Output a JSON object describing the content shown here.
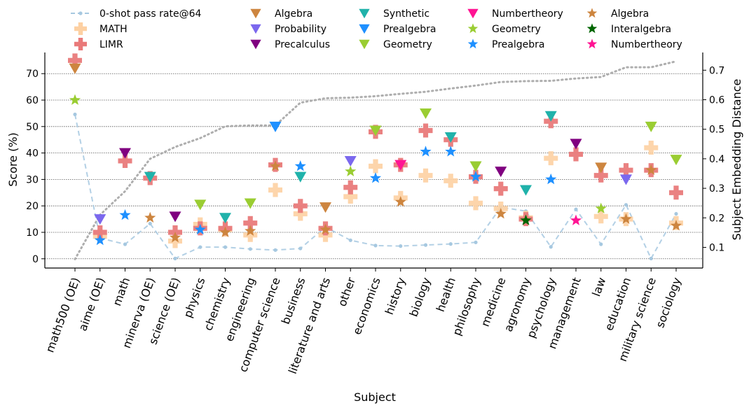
{
  "chart_data": {
    "type": "scatter",
    "xlabel": "Subject",
    "ylabel_left": "Score (%)",
    "ylabel_right": "Subject Embedding Distance",
    "ylim_left": [
      -3.5,
      78
    ],
    "ylim_right": [
      0.03,
      0.76
    ],
    "yticks_left": [
      "0",
      "10",
      "20",
      "30",
      "40",
      "50",
      "60",
      "70"
    ],
    "yticks_right": [
      "0.1",
      "0.2",
      "0.3",
      "0.4",
      "0.5",
      "0.6",
      "0.7"
    ],
    "grid": "horizontal dotted",
    "legend_position": "top",
    "categories": [
      "math500 (OE)",
      "aime (OE)",
      "math",
      "minerva (OE)",
      "science (OE)",
      "physics",
      "chemistry",
      "engineering",
      "computer science",
      "business",
      "literature and arts",
      "other",
      "economics",
      "history",
      "biology",
      "health",
      "philosophy",
      "medicine",
      "agronomy",
      "psychology",
      "management",
      "law",
      "education",
      "military science",
      "sociology"
    ],
    "embedding_distance": {
      "axis": "right",
      "values": [
        0.06,
        0.21,
        0.29,
        0.4,
        0.44,
        0.47,
        0.51,
        0.513,
        0.513,
        0.59,
        0.605,
        0.607,
        0.612,
        0.62,
        0.627,
        0.638,
        0.648,
        0.66,
        0.663,
        0.664,
        0.672,
        0.677,
        0.71,
        0.71,
        0.73
      ]
    },
    "series": [
      {
        "name": "0-shot pass rate@64",
        "marker": "line",
        "color": "#a6c8e0",
        "values": [
          54.6,
          7.8,
          5.5,
          13.3,
          0.1,
          4.4,
          4.4,
          3.7,
          3.3,
          3.9,
          12,
          7,
          5,
          4.8,
          5.2,
          5.6,
          6.2,
          19.5,
          18,
          4.5,
          18.7,
          5.5,
          20.4,
          0.1,
          17
        ]
      },
      {
        "name": "MATH",
        "marker": "plus",
        "color": "#fdd0a2",
        "values": [
          null,
          8.5,
          null,
          null,
          6.7,
          13,
          11,
          9,
          26,
          17,
          9,
          23.5,
          35,
          23,
          31.5,
          29.5,
          21,
          19,
          15.5,
          38,
          null,
          16,
          15,
          42,
          13.5
        ]
      },
      {
        "name": "LIMR",
        "marker": "plus",
        "color": "#e97a7a",
        "values": [
          75,
          10,
          37,
          30.5,
          10,
          11.5,
          11.5,
          13.5,
          35.5,
          20,
          11.5,
          27,
          48,
          35.5,
          48.5,
          45,
          31,
          26.5,
          15,
          52,
          39.5,
          31.5,
          33.5,
          33.5,
          25
        ]
      },
      {
        "name": "Algebra",
        "marker": "triangle-down",
        "color": "#cd853f",
        "values": [
          72,
          null,
          null,
          null,
          null,
          null,
          null,
          null,
          null,
          null,
          19.5,
          null,
          null,
          null,
          null,
          null,
          null,
          null,
          null,
          null,
          null,
          34.5,
          null,
          null,
          null
        ]
      },
      {
        "name": "Probability",
        "marker": "triangle-down",
        "color": "#7b68ee",
        "values": [
          null,
          15,
          null,
          null,
          null,
          null,
          null,
          null,
          null,
          null,
          null,
          37,
          null,
          null,
          null,
          null,
          null,
          null,
          null,
          null,
          null,
          null,
          30,
          null,
          null
        ]
      },
      {
        "name": "Precalculus",
        "marker": "triangle-down",
        "color": "#800080",
        "values": [
          null,
          null,
          40,
          null,
          16,
          null,
          null,
          null,
          null,
          null,
          null,
          null,
          null,
          null,
          null,
          null,
          null,
          33,
          null,
          null,
          43.5,
          null,
          null,
          null,
          null
        ]
      },
      {
        "name": "Synthetic",
        "marker": "triangle-down",
        "color": "#20b2aa",
        "values": [
          null,
          null,
          null,
          31,
          null,
          null,
          15.5,
          null,
          null,
          31,
          null,
          null,
          null,
          null,
          null,
          46,
          null,
          null,
          26,
          54,
          null,
          null,
          null,
          null,
          null
        ]
      },
      {
        "name": "Prealgebra",
        "marker": "triangle-down",
        "color": "#1e90ff",
        "values": [
          null,
          null,
          null,
          null,
          null,
          null,
          null,
          null,
          50,
          null,
          null,
          null,
          null,
          null,
          null,
          null,
          null,
          null,
          null,
          null,
          null,
          null,
          null,
          null,
          null
        ]
      },
      {
        "name": "Geometry",
        "marker": "triangle-down",
        "color": "#9acd32",
        "values": [
          null,
          null,
          null,
          null,
          null,
          20.5,
          null,
          21,
          null,
          null,
          null,
          null,
          48.5,
          null,
          55,
          null,
          35,
          null,
          null,
          null,
          null,
          null,
          null,
          50,
          37.5
        ]
      },
      {
        "name": "Numbertheory",
        "marker": "triangle-down",
        "color": "#ff1493",
        "values": [
          null,
          null,
          null,
          null,
          null,
          null,
          null,
          null,
          null,
          null,
          null,
          null,
          null,
          35.5,
          null,
          null,
          null,
          null,
          null,
          null,
          null,
          null,
          null,
          null,
          null
        ]
      },
      {
        "name": "Geometry",
        "marker": "star",
        "color": "#9acd32",
        "values": [
          60,
          null,
          null,
          null,
          null,
          null,
          null,
          null,
          null,
          null,
          null,
          33,
          null,
          null,
          null,
          null,
          null,
          null,
          null,
          null,
          null,
          19,
          null,
          null,
          null
        ]
      },
      {
        "name": "Prealgebra",
        "marker": "star",
        "color": "#1e90ff",
        "values": [
          null,
          7,
          16.5,
          null,
          null,
          11,
          null,
          null,
          null,
          35,
          null,
          null,
          30.5,
          null,
          40.5,
          40.5,
          31,
          null,
          null,
          30,
          null,
          null,
          null,
          null,
          null
        ]
      },
      {
        "name": "Algebra",
        "marker": "star",
        "color": "#cd853f",
        "values": [
          null,
          null,
          null,
          15.5,
          8,
          null,
          10,
          10.5,
          35,
          null,
          11,
          null,
          null,
          21.5,
          null,
          null,
          null,
          17,
          null,
          null,
          null,
          null,
          15,
          33.5,
          12.5
        ]
      },
      {
        "name": "Interalgebra",
        "marker": "star",
        "color": "#006400",
        "values": [
          null,
          null,
          null,
          null,
          null,
          null,
          null,
          null,
          null,
          null,
          null,
          null,
          null,
          null,
          null,
          null,
          null,
          null,
          14.5,
          null,
          null,
          null,
          null,
          null,
          null
        ]
      },
      {
        "name": "Numbertheory",
        "marker": "star",
        "color": "#ff1493",
        "values": [
          null,
          null,
          null,
          null,
          null,
          null,
          null,
          null,
          null,
          null,
          null,
          null,
          null,
          null,
          null,
          null,
          null,
          null,
          null,
          null,
          14.5,
          null,
          null,
          null,
          null
        ]
      }
    ]
  }
}
